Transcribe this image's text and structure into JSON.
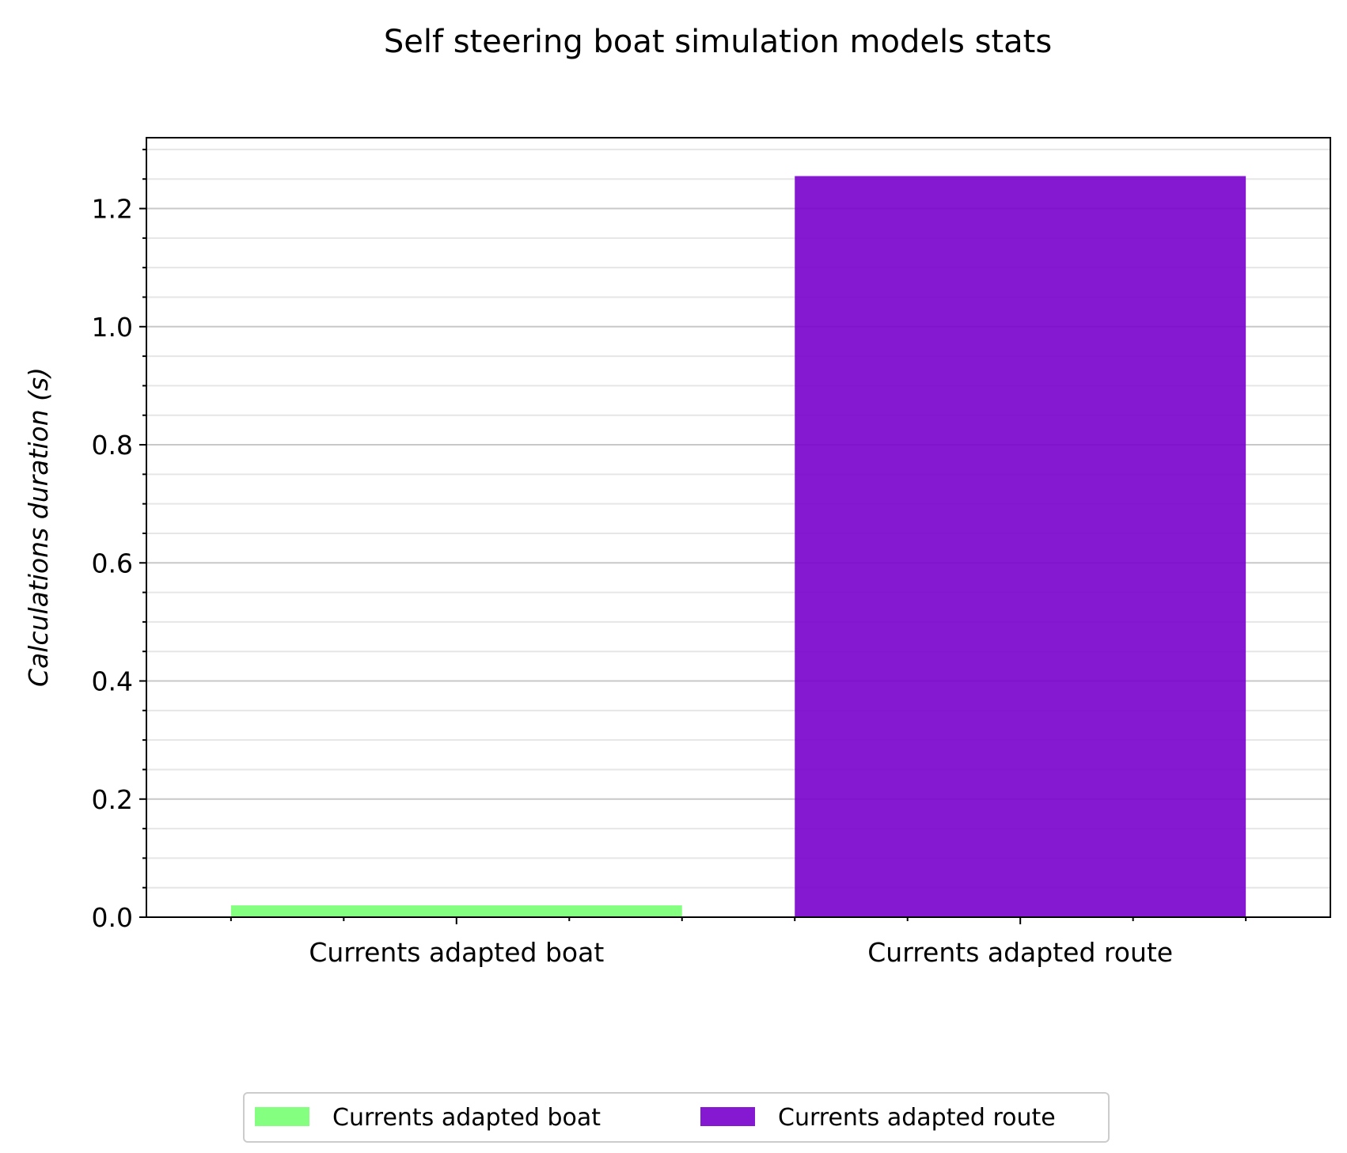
{
  "chart_data": {
    "type": "bar",
    "title": "Self steering boat simulation models stats",
    "xlabel": "",
    "ylabel": "Calculations duration (s)",
    "categories": [
      "Currents adapted boat",
      "Currents adapted route"
    ],
    "values": [
      0.02,
      1.255
    ],
    "colors": [
      "#77ff72",
      "#7700cc"
    ],
    "ylim": [
      0,
      1.32
    ],
    "yticks": [
      0.0,
      0.2,
      0.4,
      0.6,
      0.8,
      1.0,
      1.2
    ],
    "ytick_labels": [
      "0.0",
      "0.2",
      "0.4",
      "0.6",
      "0.8",
      "1.0",
      "1.2"
    ],
    "minor_ytick_step": 0.05,
    "grid": true,
    "legend": {
      "placement": "bottom-center",
      "entries": [
        {
          "label": "Currents adapted boat",
          "color": "#77ff72"
        },
        {
          "label": "Currents adapted route",
          "color": "#7700cc"
        }
      ]
    }
  }
}
